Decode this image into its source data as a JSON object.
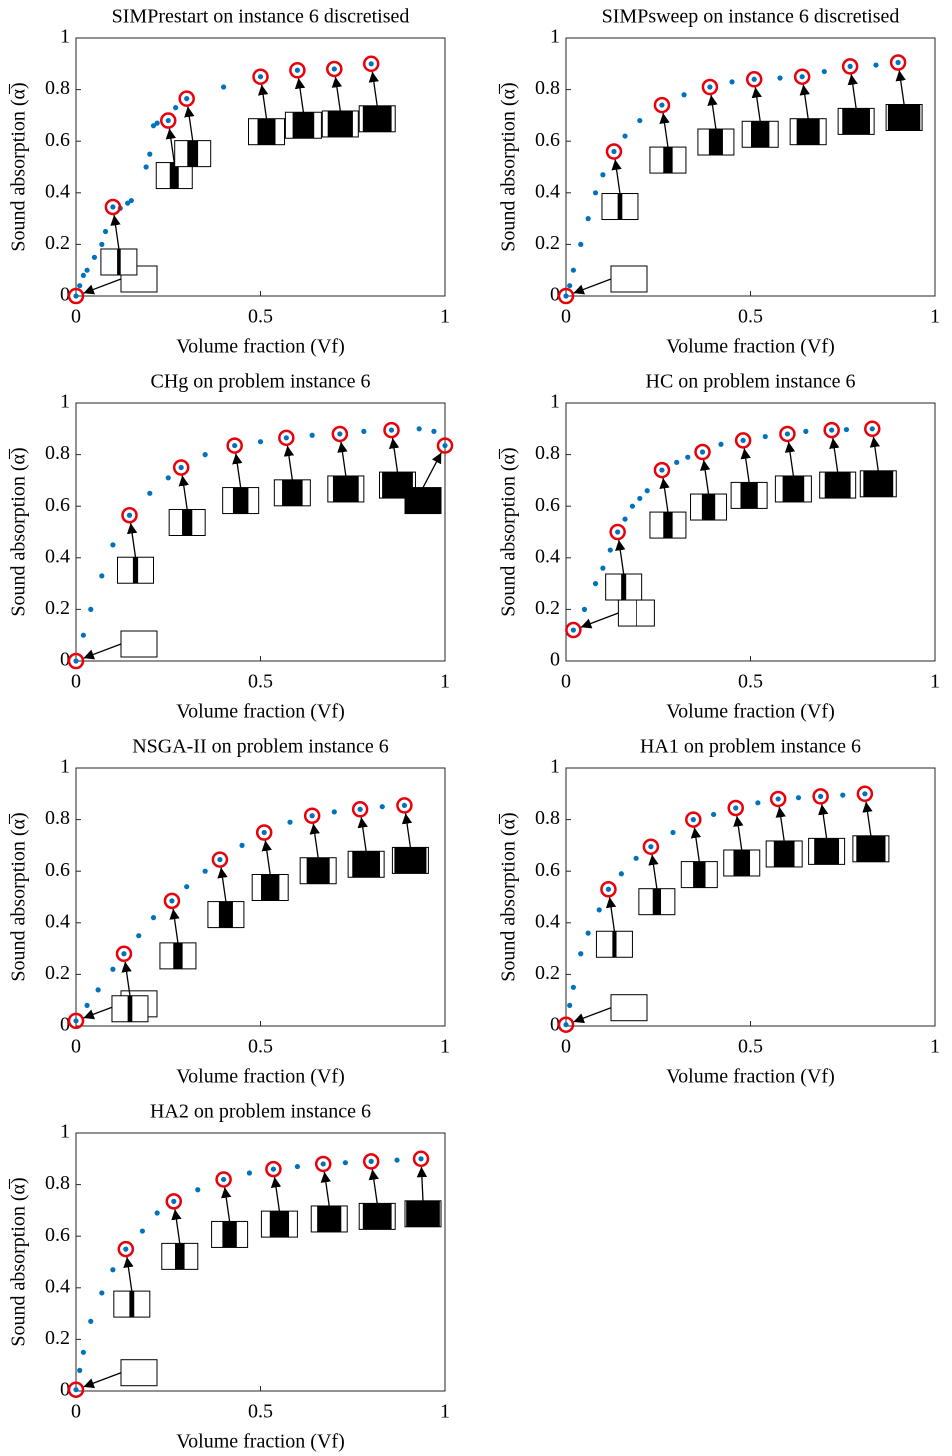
{
  "chart_data": [
    {
      "type": "scatter",
      "title": "SIMPrestart on instance 6 discretised",
      "xlabel": "Volume fraction (Vf)",
      "ylabel": "Sound absorption (α̅)",
      "xlim": [
        0,
        1
      ],
      "ylim": [
        0,
        1
      ],
      "xticks": [
        0,
        0.5,
        1
      ],
      "yticks": [
        0,
        0.2,
        0.4,
        0.6,
        0.8,
        1
      ],
      "series": [
        {
          "color": "#0072bd",
          "marker": "dot",
          "x": [
            0,
            0.01,
            0.02,
            0.03,
            0.05,
            0.07,
            0.08,
            0.1,
            0.12,
            0.14,
            0.15,
            0.19,
            0.2,
            0.21,
            0.22,
            0.25,
            0.27,
            0.3,
            0.4,
            0.5,
            0.6,
            0.7,
            0.8
          ],
          "values": [
            0,
            0.04,
            0.08,
            0.1,
            0.15,
            0.2,
            0.25,
            0.345,
            0.34,
            0.36,
            0.37,
            0.5,
            0.55,
            0.66,
            0.67,
            0.68,
            0.73,
            0.765,
            0.81,
            0.85,
            0.875,
            0.88,
            0.9
          ]
        },
        {
          "color": "#e8000b",
          "marker": "circle",
          "x": [
            0,
            0.1,
            0.25,
            0.3,
            0.5,
            0.6,
            0.7,
            0.8
          ],
          "values": [
            0,
            0.345,
            0.68,
            0.765,
            0.85,
            0.875,
            0.88,
            0.9
          ]
        }
      ]
    },
    {
      "type": "scatter",
      "title": "SIMPsweep on instance 6 discretised",
      "xlabel": "Volume fraction (Vf)",
      "ylabel": "Sound absorption (α̅)",
      "xlim": [
        0,
        1
      ],
      "ylim": [
        0,
        1
      ],
      "xticks": [
        0,
        0.5,
        1
      ],
      "yticks": [
        0,
        0.2,
        0.4,
        0.6,
        0.8,
        1
      ],
      "series": [
        {
          "color": "#0072bd",
          "marker": "dot",
          "x": [
            0,
            0.01,
            0.02,
            0.04,
            0.06,
            0.08,
            0.1,
            0.13,
            0.16,
            0.2,
            0.26,
            0.32,
            0.39,
            0.45,
            0.51,
            0.58,
            0.64,
            0.7,
            0.77,
            0.84,
            0.9
          ],
          "values": [
            0,
            0.04,
            0.1,
            0.2,
            0.3,
            0.4,
            0.47,
            0.56,
            0.62,
            0.68,
            0.74,
            0.78,
            0.81,
            0.83,
            0.84,
            0.845,
            0.85,
            0.87,
            0.89,
            0.895,
            0.905
          ]
        },
        {
          "color": "#e8000b",
          "marker": "circle",
          "x": [
            0,
            0.13,
            0.26,
            0.39,
            0.51,
            0.64,
            0.77,
            0.9
          ],
          "values": [
            0,
            0.56,
            0.74,
            0.81,
            0.84,
            0.85,
            0.89,
            0.905
          ]
        }
      ]
    },
    {
      "type": "scatter",
      "title": "CHg on problem instance 6",
      "xlabel": "Volume fraction (Vf)",
      "ylabel": "Sound absorption (α̅)",
      "xlim": [
        0,
        1
      ],
      "ylim": [
        0,
        1
      ],
      "xticks": [
        0,
        0.5,
        1
      ],
      "yticks": [
        0,
        0.2,
        0.4,
        0.6,
        0.8,
        1
      ],
      "series": [
        {
          "color": "#0072bd",
          "marker": "dot",
          "x": [
            0,
            0.02,
            0.04,
            0.07,
            0.1,
            0.145,
            0.2,
            0.25,
            0.285,
            0.35,
            0.43,
            0.5,
            0.57,
            0.64,
            0.715,
            0.78,
            0.855,
            0.93,
            0.97,
            1
          ],
          "values": [
            0,
            0.1,
            0.2,
            0.33,
            0.45,
            0.565,
            0.65,
            0.71,
            0.75,
            0.8,
            0.835,
            0.85,
            0.865,
            0.875,
            0.88,
            0.89,
            0.895,
            0.9,
            0.89,
            0.835
          ]
        },
        {
          "color": "#e8000b",
          "marker": "circle",
          "x": [
            0,
            0.145,
            0.285,
            0.43,
            0.57,
            0.715,
            0.855,
            1
          ],
          "values": [
            0,
            0.565,
            0.75,
            0.835,
            0.865,
            0.88,
            0.895,
            0.835
          ]
        }
      ]
    },
    {
      "type": "scatter",
      "title": "HC on problem instance 6",
      "xlabel": "Volume fraction (Vf)",
      "ylabel": "Sound absorption (α̅)",
      "xlim": [
        0,
        1
      ],
      "ylim": [
        0,
        1
      ],
      "xticks": [
        0,
        0.5,
        1
      ],
      "yticks": [
        0,
        0.2,
        0.4,
        0.6,
        0.8,
        1
      ],
      "series": [
        {
          "color": "#0072bd",
          "marker": "dot",
          "x": [
            0.02,
            0.05,
            0.08,
            0.1,
            0.12,
            0.14,
            0.16,
            0.18,
            0.2,
            0.22,
            0.26,
            0.3,
            0.33,
            0.37,
            0.42,
            0.48,
            0.54,
            0.6,
            0.65,
            0.72,
            0.76,
            0.83
          ],
          "values": [
            0.12,
            0.2,
            0.3,
            0.36,
            0.43,
            0.5,
            0.55,
            0.6,
            0.63,
            0.66,
            0.74,
            0.77,
            0.79,
            0.81,
            0.84,
            0.855,
            0.87,
            0.88,
            0.89,
            0.895,
            0.897,
            0.9
          ]
        },
        {
          "color": "#e8000b",
          "marker": "circle",
          "x": [
            0.02,
            0.14,
            0.26,
            0.37,
            0.48,
            0.6,
            0.72,
            0.83
          ],
          "values": [
            0.12,
            0.5,
            0.74,
            0.81,
            0.855,
            0.88,
            0.895,
            0.9
          ]
        }
      ]
    },
    {
      "type": "scatter",
      "title": "NSGA-II on problem instance 6",
      "xlabel": "Volume fraction (Vf)",
      "ylabel": "Sound absorption (α̅)",
      "xlim": [
        0,
        1
      ],
      "ylim": [
        0,
        1
      ],
      "xticks": [
        0,
        0.5,
        1
      ],
      "yticks": [
        0,
        0.2,
        0.4,
        0.6,
        0.8,
        1
      ],
      "series": [
        {
          "color": "#0072bd",
          "marker": "dot",
          "x": [
            0,
            0.03,
            0.06,
            0.1,
            0.13,
            0.17,
            0.21,
            0.26,
            0.3,
            0.35,
            0.39,
            0.45,
            0.51,
            0.58,
            0.64,
            0.7,
            0.77,
            0.83,
            0.89
          ],
          "values": [
            0.02,
            0.08,
            0.14,
            0.22,
            0.28,
            0.35,
            0.42,
            0.485,
            0.54,
            0.6,
            0.645,
            0.7,
            0.75,
            0.79,
            0.815,
            0.83,
            0.84,
            0.85,
            0.855
          ]
        },
        {
          "color": "#e8000b",
          "marker": "circle",
          "x": [
            0,
            0.13,
            0.26,
            0.39,
            0.51,
            0.64,
            0.77,
            0.89
          ],
          "values": [
            0.02,
            0.28,
            0.485,
            0.645,
            0.75,
            0.815,
            0.84,
            0.855
          ]
        }
      ]
    },
    {
      "type": "scatter",
      "title": "HA1 on problem instance 6",
      "xlabel": "Volume fraction (Vf)",
      "ylabel": "Sound absorption (α̅)",
      "xlim": [
        0,
        1
      ],
      "ylim": [
        0,
        1
      ],
      "xticks": [
        0,
        0.5,
        1
      ],
      "yticks": [
        0,
        0.2,
        0.4,
        0.6,
        0.8,
        1
      ],
      "series": [
        {
          "color": "#0072bd",
          "marker": "dot",
          "x": [
            0,
            0.01,
            0.02,
            0.04,
            0.06,
            0.09,
            0.115,
            0.15,
            0.19,
            0.23,
            0.29,
            0.345,
            0.4,
            0.46,
            0.52,
            0.575,
            0.63,
            0.69,
            0.75,
            0.81
          ],
          "values": [
            0.005,
            0.08,
            0.15,
            0.28,
            0.36,
            0.45,
            0.53,
            0.59,
            0.65,
            0.695,
            0.75,
            0.8,
            0.82,
            0.845,
            0.865,
            0.88,
            0.885,
            0.89,
            0.895,
            0.9
          ]
        },
        {
          "color": "#e8000b",
          "marker": "circle",
          "x": [
            0,
            0.115,
            0.23,
            0.345,
            0.46,
            0.575,
            0.69,
            0.81
          ],
          "values": [
            0.005,
            0.53,
            0.695,
            0.8,
            0.845,
            0.88,
            0.89,
            0.9
          ]
        }
      ]
    },
    {
      "type": "scatter",
      "title": "HA2 on problem instance 6",
      "xlabel": "Volume fraction (Vf)",
      "ylabel": "Sound absorption (α̅)",
      "xlim": [
        0,
        1
      ],
      "ylim": [
        0,
        1
      ],
      "xticks": [
        0,
        0.5,
        1
      ],
      "yticks": [
        0,
        0.2,
        0.4,
        0.6,
        0.8,
        1
      ],
      "series": [
        {
          "color": "#0072bd",
          "marker": "dot",
          "x": [
            0,
            0.01,
            0.02,
            0.04,
            0.07,
            0.1,
            0.135,
            0.18,
            0.22,
            0.265,
            0.33,
            0.4,
            0.47,
            0.535,
            0.6,
            0.67,
            0.73,
            0.8,
            0.87,
            0.935
          ],
          "values": [
            0.005,
            0.08,
            0.15,
            0.27,
            0.38,
            0.47,
            0.55,
            0.62,
            0.69,
            0.735,
            0.78,
            0.82,
            0.845,
            0.86,
            0.87,
            0.88,
            0.885,
            0.89,
            0.895,
            0.9
          ]
        },
        {
          "color": "#e8000b",
          "marker": "circle",
          "x": [
            0,
            0.135,
            0.265,
            0.4,
            0.535,
            0.67,
            0.8,
            0.935
          ],
          "values": [
            0.005,
            0.55,
            0.735,
            0.82,
            0.86,
            0.88,
            0.89,
            0.9
          ]
        }
      ]
    }
  ]
}
